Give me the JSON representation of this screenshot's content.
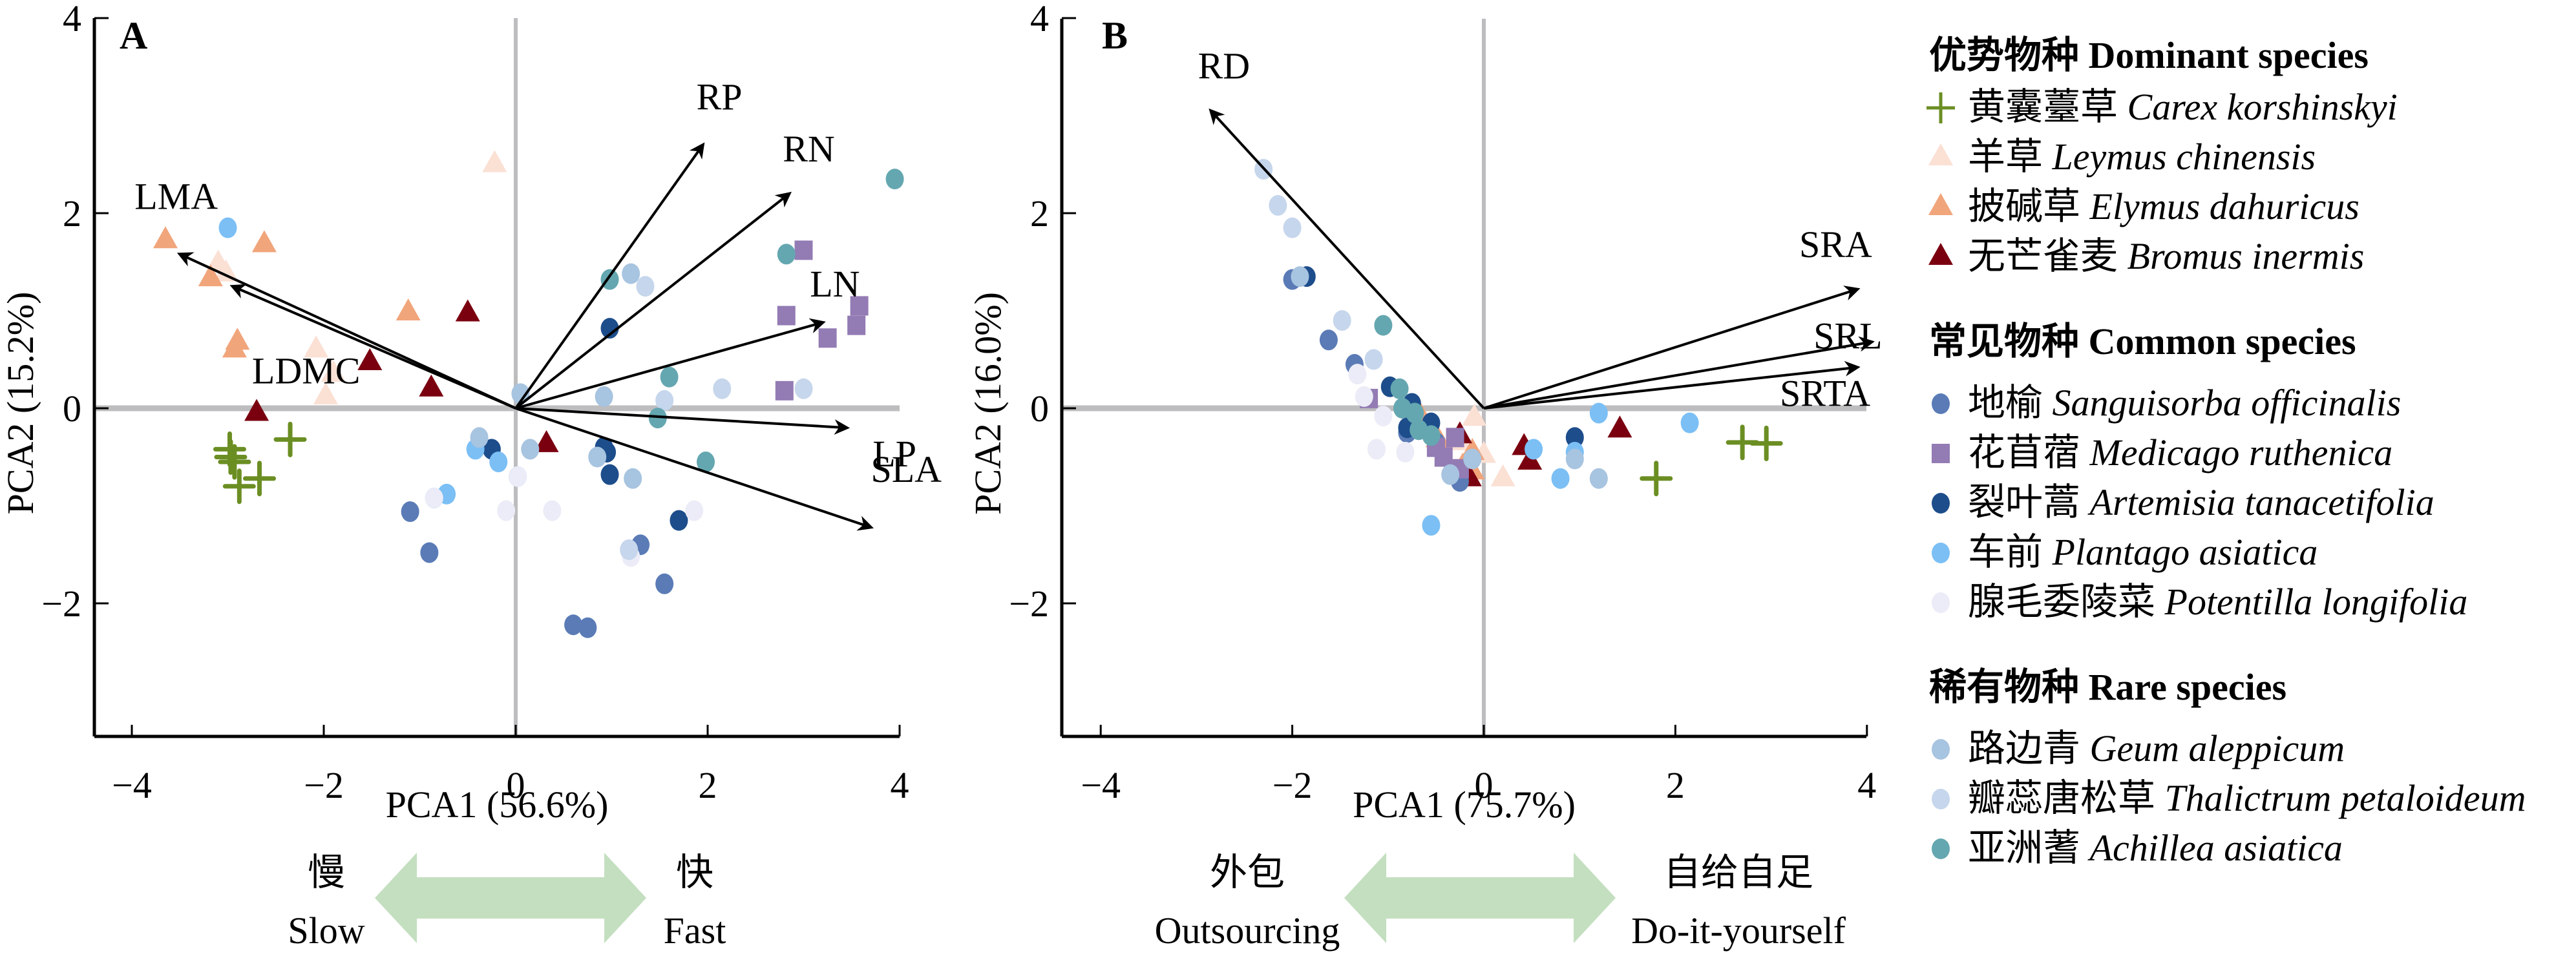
{
  "colors": {
    "carex": "#6b8e23",
    "leymus": "#fbe0d4",
    "elymus": "#f1a57b",
    "bromus": "#7a0010",
    "sanguisorba": "#5a7bb6",
    "medicago": "#937bb4",
    "artemisia": "#1d4d8b",
    "plantago": "#7bbff5",
    "potentilla": "#ebecf7",
    "geum": "#a7c4e0",
    "thalictrum": "#c6d6ec",
    "achillea": "#64a7b0",
    "zero_line": "#bdbcbe",
    "axis": "#000000",
    "double_arrow": "#c4dfc0"
  },
  "legend": {
    "groups": [
      {
        "title": "优势物种 Dominant species",
        "items": [
          {
            "key": "carex",
            "shape": "plus",
            "zh": "黄囊薹草",
            "latin": "Carex korshinskyi"
          },
          {
            "key": "leymus",
            "shape": "triangle",
            "zh": "羊草",
            "latin": "Leymus chinensis"
          },
          {
            "key": "elymus",
            "shape": "triangle",
            "zh": "披碱草",
            "latin": "Elymus dahuricus"
          },
          {
            "key": "bromus",
            "shape": "triangle",
            "zh": "无芒雀麦",
            "latin": "Bromus inermis"
          }
        ]
      },
      {
        "title": "常见物种 Common species",
        "items": [
          {
            "key": "sanguisorba",
            "shape": "circle",
            "zh": "地榆",
            "latin": "Sanguisorba officinalis"
          },
          {
            "key": "medicago",
            "shape": "square",
            "zh": "花苜蓿",
            "latin": "Medicago ruthenica"
          },
          {
            "key": "artemisia",
            "shape": "circle",
            "zh": "裂叶蒿",
            "latin": "Artemisia tanacetifolia"
          },
          {
            "key": "plantago",
            "shape": "circle",
            "zh": "车前",
            "latin": "Plantago asiatica"
          },
          {
            "key": "potentilla",
            "shape": "circle",
            "zh": "腺毛委陵菜",
            "latin": "Potentilla longifolia"
          }
        ]
      },
      {
        "title": "稀有物种 Rare species",
        "items": [
          {
            "key": "geum",
            "shape": "circle",
            "zh": "路边青",
            "latin": "Geum aleppicum"
          },
          {
            "key": "thalictrum",
            "shape": "circle",
            "zh": "瓣蕊唐松草",
            "latin": "Thalictrum petaloideum"
          },
          {
            "key": "achillea",
            "shape": "circle",
            "zh": "亚洲蓍",
            "latin": "Achillea asiatica"
          }
        ]
      }
    ]
  },
  "chart_data": [
    {
      "type": "scatter",
      "panel": "A",
      "title": "",
      "xlabel": "PCA1 (56.6%)",
      "ylabel": "PCA2 (15.2%)",
      "xlim": [
        -4.4,
        4
      ],
      "ylim": [
        -3.35,
        4
      ],
      "xticks": [
        -4,
        -2,
        0,
        2,
        4
      ],
      "yticks": [
        -2,
        0,
        2,
        4
      ],
      "tick_labels_x": [
        "−4",
        "−2",
        "0",
        "2",
        "4"
      ],
      "tick_labels_y": [
        "−2",
        "0",
        "2",
        "4"
      ],
      "bottom_arrow": {
        "left_zh": "慢",
        "left_en": "Slow",
        "right_zh": "快",
        "right_en": "Fast"
      },
      "vectors": [
        {
          "name": "RP",
          "x": 1.95,
          "y": 2.7
        },
        {
          "name": "RN",
          "x": 2.85,
          "y": 2.2
        },
        {
          "name": "LN",
          "x": 3.2,
          "y": 0.88
        },
        {
          "name": "LP",
          "x": 3.45,
          "y": -0.2
        },
        {
          "name": "SLA",
          "x": 3.7,
          "y": -1.22
        },
        {
          "name": "LMA",
          "x": -3.5,
          "y": 1.58
        },
        {
          "name": "LDMC",
          "x": -2.95,
          "y": 1.25
        }
      ],
      "series": [
        {
          "key": "carex",
          "points": [
            [
              -2.98,
              -0.42
            ],
            [
              -2.93,
              -0.55
            ],
            [
              -2.88,
              -0.8
            ],
            [
              -2.67,
              -0.72
            ],
            [
              -2.35,
              -0.32
            ],
            [
              -2.97,
              -0.5
            ]
          ]
        },
        {
          "key": "leymus",
          "points": [
            [
              -0.22,
              2.5
            ],
            [
              -3.1,
              1.48
            ],
            [
              -2.08,
              0.6
            ],
            [
              -1.9,
              0.35
            ],
            [
              -1.98,
              0.12
            ],
            [
              -3.02,
              1.38
            ]
          ]
        },
        {
          "key": "elymus",
          "points": [
            [
              -3.65,
              1.72
            ],
            [
              -2.62,
              1.68
            ],
            [
              -3.18,
              1.33
            ],
            [
              -1.12,
              0.98
            ],
            [
              -2.93,
              0.6
            ],
            [
              -2.9,
              0.68
            ]
          ]
        },
        {
          "key": "bromus",
          "points": [
            [
              -0.5,
              0.97
            ],
            [
              -1.52,
              0.47
            ],
            [
              -0.88,
              0.2
            ],
            [
              -2.7,
              -0.05
            ],
            [
              -0.36,
              -0.38
            ],
            [
              0.32,
              -0.37
            ]
          ]
        },
        {
          "key": "sanguisorba",
          "points": [
            [
              -1.1,
              -1.06
            ],
            [
              -0.9,
              -1.48
            ],
            [
              0.6,
              -2.22
            ],
            [
              0.75,
              -2.25
            ],
            [
              1.3,
              -1.4
            ],
            [
              1.55,
              -1.8
            ]
          ]
        },
        {
          "key": "medicago",
          "points": [
            [
              3.0,
              1.62
            ],
            [
              2.82,
              0.95
            ],
            [
              3.25,
              0.72
            ],
            [
              3.55,
              0.85
            ],
            [
              3.58,
              1.05
            ],
            [
              2.8,
              0.18
            ]
          ]
        },
        {
          "key": "artemisia",
          "points": [
            [
              0.98,
              0.82
            ],
            [
              -0.25,
              -0.42
            ],
            [
              0.95,
              -0.45
            ],
            [
              0.98,
              -0.68
            ],
            [
              1.7,
              -1.15
            ],
            [
              0.92,
              -0.4
            ]
          ]
        },
        {
          "key": "plantago",
          "points": [
            [
              -3.0,
              1.85
            ],
            [
              -0.18,
              -0.55
            ],
            [
              -0.42,
              -0.42
            ],
            [
              -0.72,
              -0.88
            ],
            [
              -0.85,
              -0.92
            ],
            [
              0.02,
              -0.7
            ]
          ]
        },
        {
          "key": "potentilla",
          "points": [
            [
              -0.85,
              -0.92
            ],
            [
              0.38,
              -1.05
            ],
            [
              0.02,
              -0.7
            ],
            [
              -0.1,
              -1.05
            ],
            [
              1.86,
              -1.05
            ],
            [
              1.2,
              -1.52
            ]
          ]
        },
        {
          "key": "geum",
          "points": [
            [
              0.05,
              0.15
            ],
            [
              0.92,
              0.12
            ],
            [
              -0.38,
              -0.3
            ],
            [
              0.15,
              -0.42
            ],
            [
              0.85,
              -0.5
            ],
            [
              1.22,
              -0.72
            ],
            [
              1.2,
              1.38
            ]
          ]
        },
        {
          "key": "thalictrum",
          "points": [
            [
              1.35,
              1.25
            ],
            [
              2.15,
              0.2
            ],
            [
              1.55,
              0.08
            ],
            [
              3.0,
              0.2
            ],
            [
              1.18,
              -1.45
            ]
          ]
        },
        {
          "key": "achillea",
          "points": [
            [
              3.95,
              2.35
            ],
            [
              2.82,
              1.58
            ],
            [
              0.98,
              1.32
            ],
            [
              1.6,
              0.32
            ],
            [
              1.48,
              -0.1
            ],
            [
              1.98,
              -0.55
            ]
          ]
        }
      ]
    },
    {
      "type": "scatter",
      "panel": "B",
      "title": "",
      "xlabel": "PCA1 (75.7%)",
      "ylabel": "PCA2 (16.0%)",
      "xlim": [
        -4.4,
        4
      ],
      "ylim": [
        -3.35,
        4
      ],
      "xticks": [
        -4,
        -2,
        0,
        2,
        4
      ],
      "yticks": [
        -2,
        0,
        2,
        4
      ],
      "tick_labels_x": [
        "−4",
        "−2",
        "0",
        "2",
        "4"
      ],
      "tick_labels_y": [
        "−2",
        "0",
        "2",
        "4"
      ],
      "bottom_arrow": {
        "left_zh": "外包",
        "left_en": "Outsourcing",
        "right_zh": "自给自足",
        "right_en": "Do-it-yourself"
      },
      "vectors": [
        {
          "name": "RD",
          "x": -2.85,
          "y": 3.05
        },
        {
          "name": "SRA",
          "x": 3.9,
          "y": 1.22
        },
        {
          "name": "SRL",
          "x": 4.05,
          "y": 0.68
        },
        {
          "name": "SRTA",
          "x": 3.9,
          "y": 0.42
        }
      ],
      "series": [
        {
          "key": "carex",
          "points": [
            [
              2.7,
              -0.35
            ],
            [
              2.95,
              -0.36
            ],
            [
              1.8,
              -0.72
            ]
          ]
        },
        {
          "key": "leymus",
          "points": [
            [
              -0.25,
              -0.35
            ],
            [
              0.0,
              -0.48
            ],
            [
              0.2,
              -0.72
            ],
            [
              -0.1,
              -0.1
            ]
          ]
        },
        {
          "key": "elymus",
          "points": [
            [
              -0.68,
              -0.05
            ],
            [
              -0.48,
              -0.32
            ],
            [
              -0.22,
              -0.6
            ],
            [
              -0.12,
              -0.45
            ],
            [
              -0.12,
              -0.65
            ]
          ]
        },
        {
          "key": "bromus",
          "points": [
            [
              -0.25,
              -0.28
            ],
            [
              0.42,
              -0.4
            ],
            [
              0.48,
              -0.55
            ],
            [
              1.42,
              -0.22
            ],
            [
              -0.15,
              -0.72
            ]
          ]
        },
        {
          "key": "sanguisorba",
          "points": [
            [
              -2.0,
              1.32
            ],
            [
              -1.62,
              0.7
            ],
            [
              -1.35,
              0.45
            ],
            [
              -0.8,
              -0.25
            ],
            [
              -0.25,
              -0.75
            ],
            [
              -0.5,
              -0.35
            ]
          ]
        },
        {
          "key": "medicago",
          "points": [
            [
              -1.2,
              0.1
            ],
            [
              -0.42,
              -0.5
            ],
            [
              -0.25,
              -0.62
            ],
            [
              -0.3,
              -0.3
            ],
            [
              -0.5,
              -0.4
            ]
          ]
        },
        {
          "key": "artemisia",
          "points": [
            [
              -1.85,
              1.35
            ],
            [
              -0.98,
              0.22
            ],
            [
              -0.75,
              0.05
            ],
            [
              -0.55,
              -0.15
            ],
            [
              0.95,
              -0.3
            ],
            [
              -0.8,
              -0.2
            ]
          ]
        },
        {
          "key": "plantago",
          "points": [
            [
              -0.55,
              -1.2
            ],
            [
              0.52,
              -0.42
            ],
            [
              0.95,
              -0.45
            ],
            [
              0.8,
              -0.72
            ],
            [
              1.2,
              -0.05
            ],
            [
              2.15,
              -0.15
            ]
          ]
        },
        {
          "key": "potentilla",
          "points": [
            [
              -1.32,
              0.35
            ],
            [
              -1.25,
              0.12
            ],
            [
              -1.05,
              -0.08
            ],
            [
              -1.12,
              -0.42
            ],
            [
              -0.82,
              -0.45
            ]
          ]
        },
        {
          "key": "geum",
          "points": [
            [
              -1.92,
              1.35
            ],
            [
              -0.35,
              -0.68
            ],
            [
              -0.12,
              -0.52
            ],
            [
              0.95,
              -0.52
            ],
            [
              1.2,
              -0.72
            ]
          ]
        },
        {
          "key": "thalictrum",
          "points": [
            [
              -2.3,
              2.45
            ],
            [
              -2.15,
              2.08
            ],
            [
              -2.0,
              1.85
            ],
            [
              -1.48,
              0.9
            ],
            [
              -1.15,
              0.5
            ]
          ]
        },
        {
          "key": "achillea",
          "points": [
            [
              -1.05,
              0.85
            ],
            [
              -0.88,
              0.2
            ],
            [
              -0.72,
              -0.05
            ],
            [
              -0.85,
              0.0
            ],
            [
              -0.68,
              -0.22
            ],
            [
              -0.55,
              -0.28
            ]
          ]
        }
      ]
    }
  ]
}
